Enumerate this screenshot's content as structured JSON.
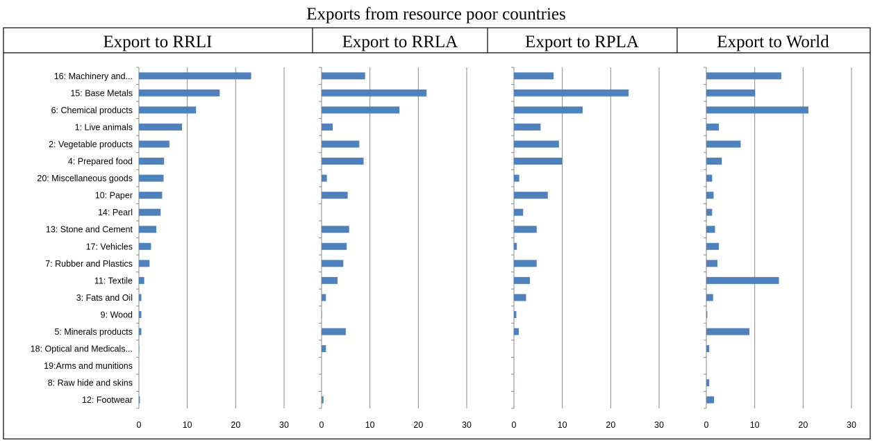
{
  "figure": {
    "title": "Exports from resource poor countries"
  },
  "chart_data": {
    "type": "bar",
    "orientation": "horizontal",
    "title": "Exports from resource poor countries",
    "categories": [
      "16: Machinery and...",
      "15: Base Metals",
      "6: Chemical products",
      "1: Live animals",
      "2: Vegetable products",
      "4: Prepared food",
      "20: Miscellaneous goods",
      "10: Paper",
      "14: Pearl",
      "13: Stone and Cement",
      "17: Vehicles",
      "7: Rubber and Plastics",
      "11: Textile",
      "3: Fats and Oil",
      "9: Wood",
      "5: Minerals products",
      "18: Optical and Medicals...",
      "19:Arms and munitions",
      "8: Raw hide and skins",
      "12: Footwear"
    ],
    "xlim": [
      0,
      30
    ],
    "xticks": [
      "0",
      "10",
      "20",
      "30"
    ],
    "grid": true,
    "color": "#4f81bd",
    "panels": [
      {
        "name": "Export to RRLI",
        "values": [
          23.2,
          16.7,
          11.8,
          8.9,
          6.3,
          5.2,
          5.1,
          4.8,
          4.5,
          3.6,
          2.5,
          2.2,
          1.1,
          0.5,
          0.5,
          0.5,
          0.1,
          0.05,
          0.05,
          0.2
        ]
      },
      {
        "name": "Export to RRLA",
        "values": [
          9.0,
          21.7,
          16.1,
          2.3,
          7.8,
          8.7,
          1.1,
          5.4,
          0.0,
          5.7,
          5.2,
          4.5,
          3.3,
          0.9,
          0.1,
          5.0,
          0.9,
          0.05,
          0.05,
          0.4
        ]
      },
      {
        "name": "Export to RPLA",
        "values": [
          8.2,
          23.7,
          14.2,
          5.5,
          9.3,
          10.0,
          1.1,
          7.0,
          1.9,
          4.7,
          0.6,
          4.7,
          3.3,
          2.5,
          0.5,
          1.0,
          0.05,
          0.05,
          0.05,
          0.05
        ]
      },
      {
        "name": "Export to World",
        "values": [
          15.5,
          10.1,
          21.1,
          2.6,
          7.1,
          3.2,
          1.2,
          1.5,
          1.2,
          1.8,
          2.6,
          2.3,
          15.0,
          1.4,
          0.2,
          8.9,
          0.6,
          0.05,
          0.6,
          1.6
        ]
      }
    ]
  }
}
